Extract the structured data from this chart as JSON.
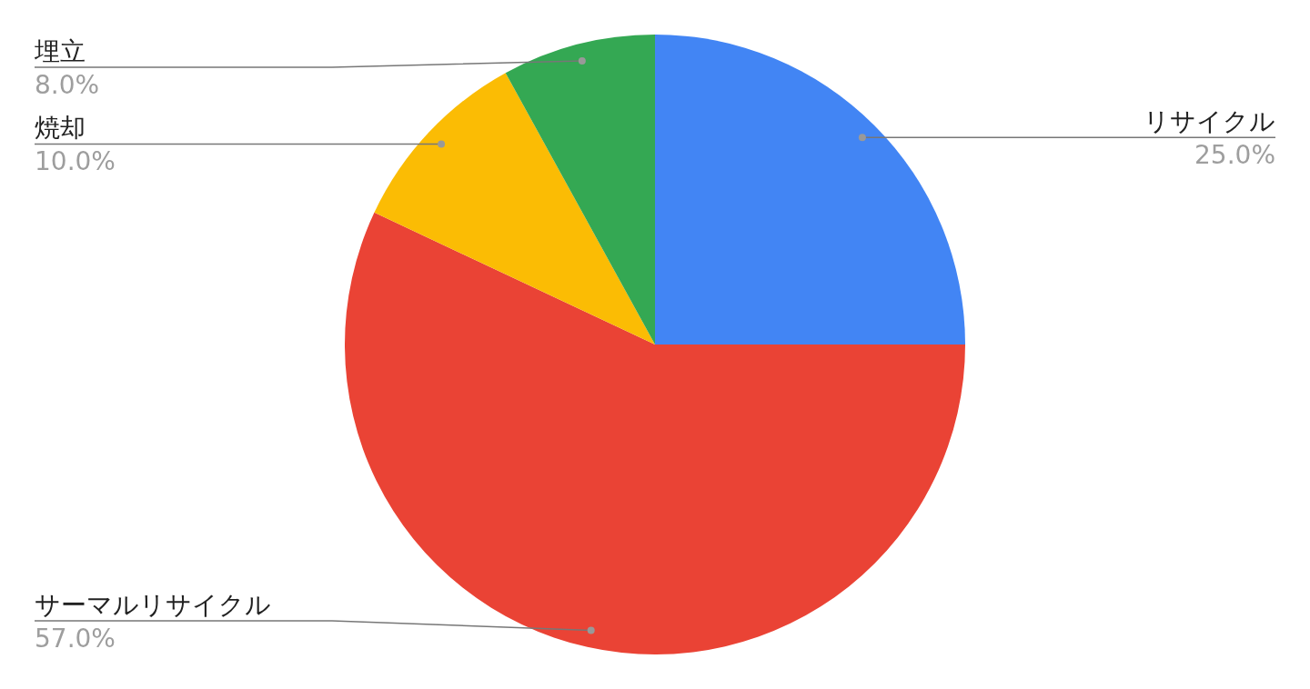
{
  "chart_data": {
    "type": "pie",
    "categories": [
      "リサイクル",
      "サーマルリサイクル",
      "焼却",
      "埋立"
    ],
    "values": [
      25.0,
      57.0,
      10.0,
      8.0
    ],
    "colors": [
      "#4285f4",
      "#ea4335",
      "#fbbc04",
      "#34a853"
    ],
    "value_labels": [
      "25.0%",
      "57.0%",
      "10.0%",
      "8.0%"
    ]
  }
}
